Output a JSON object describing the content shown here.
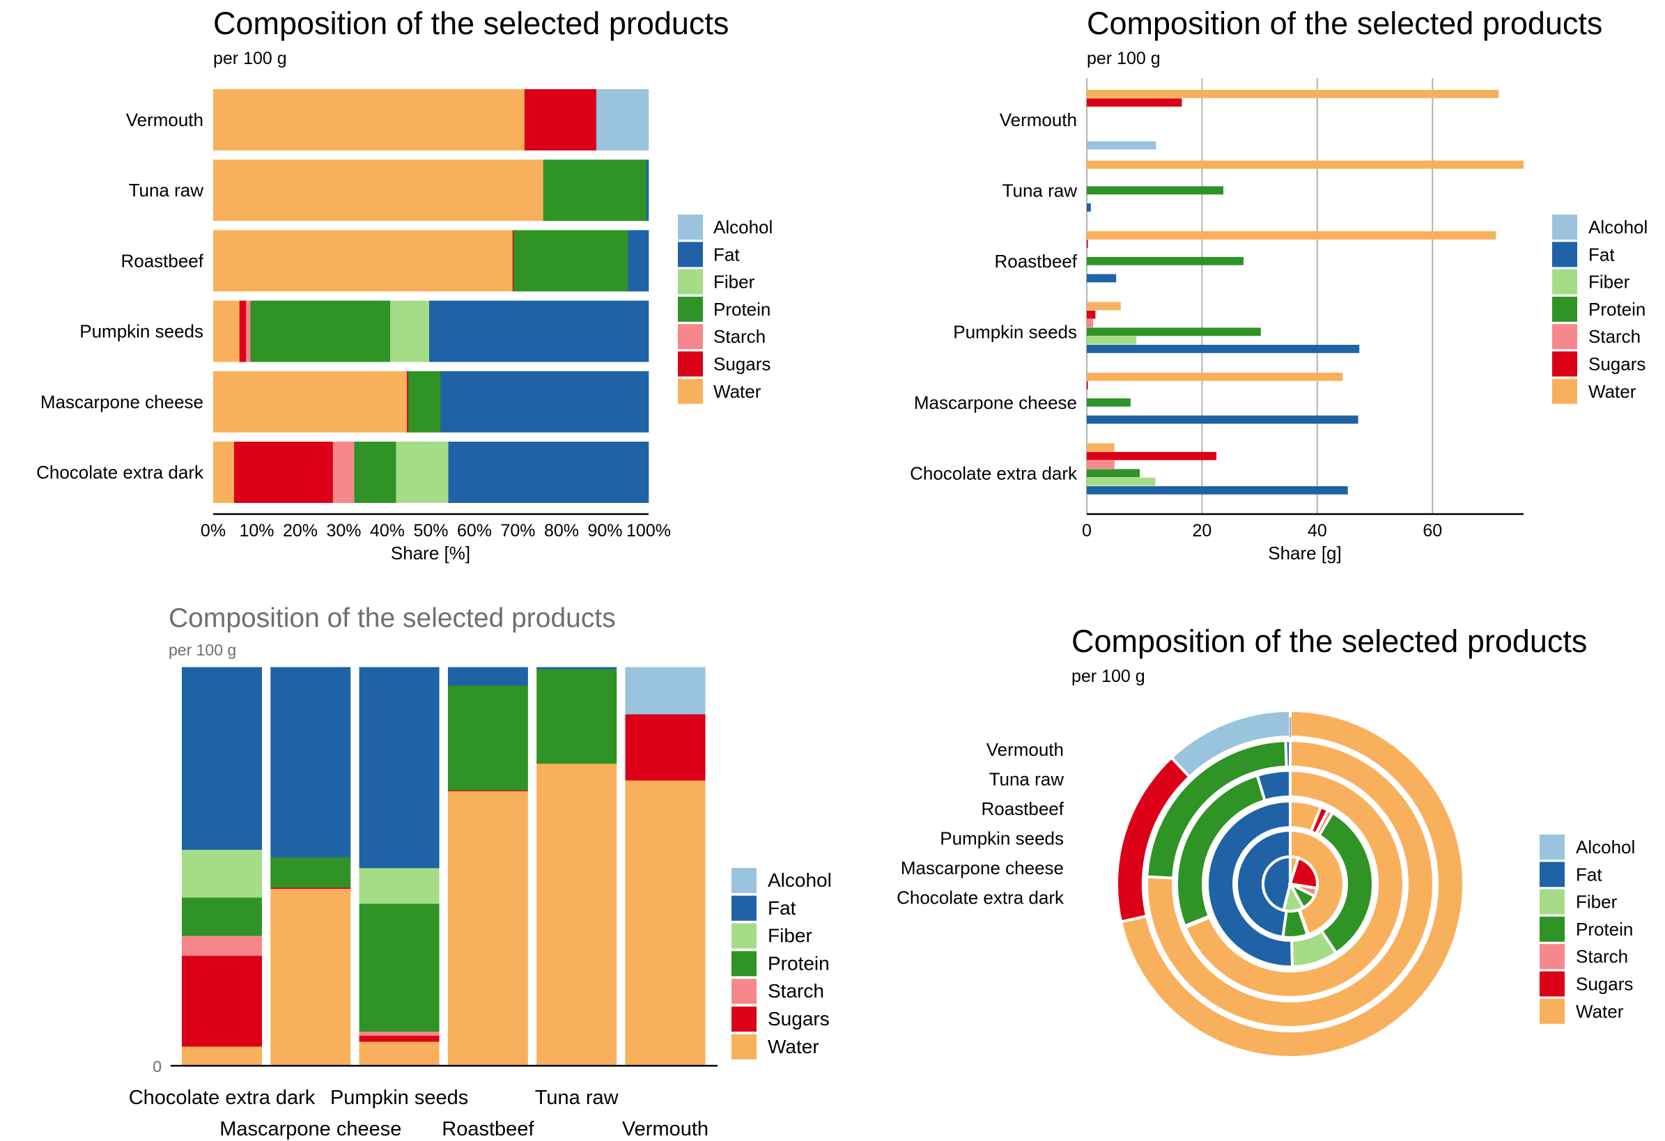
{
  "palette": {
    "Alcohol": "#9ac3dd",
    "Fat": "#1f63a6",
    "Fiber": "#a5dc87",
    "Protein": "#2f9325",
    "Starch": "#f6888d",
    "Sugars": "#db0018",
    "Water": "#f9b05c"
  },
  "chart_data": [
    {
      "type": "bar",
      "orientation": "horizontal",
      "stacked": "percent",
      "title": "Composition of the selected products",
      "subtitle": "per 100 g",
      "xlabel": "Share [%]",
      "ylabel": "",
      "xlim": [
        0,
        100
      ],
      "x_tick_labels": [
        "0%",
        "10%",
        "20%",
        "30%",
        "40%",
        "50%",
        "60%",
        "70%",
        "80%",
        "90%",
        "100%"
      ],
      "categories": [
        "Vermouth",
        "Tuna raw",
        "Roastbeef",
        "Pumpkin seeds",
        "Mascarpone cheese",
        "Chocolate extra dark"
      ],
      "legend": [
        "Alcohol",
        "Fat",
        "Fiber",
        "Protein",
        "Starch",
        "Sugars",
        "Water"
      ],
      "legend_position": "right",
      "series": [
        {
          "name": "Water",
          "values": [
            71.5,
            75.8,
            68.9,
            6.0,
            44.5,
            4.8
          ]
        },
        {
          "name": "Sugars",
          "values": [
            16.5,
            0.0,
            0.2,
            1.5,
            0.3,
            22.7
          ]
        },
        {
          "name": "Starch",
          "values": [
            0.0,
            0.0,
            0.0,
            1.0,
            0.0,
            4.9
          ]
        },
        {
          "name": "Protein",
          "values": [
            0.0,
            23.7,
            26.4,
            31.9,
            7.4,
            9.6
          ]
        },
        {
          "name": "Fiber",
          "values": [
            0.0,
            0.0,
            0.0,
            8.9,
            0.0,
            12.0
          ]
        },
        {
          "name": "Fat",
          "values": [
            0.0,
            0.5,
            4.7,
            50.1,
            47.8,
            46.0
          ]
        },
        {
          "name": "Alcohol",
          "values": [
            12.0,
            0.0,
            0.0,
            0.0,
            0.0,
            0.0
          ]
        }
      ]
    },
    {
      "type": "bar",
      "orientation": "horizontal",
      "stacked": "none",
      "title": "Composition of the selected products",
      "subtitle": "per 100 g",
      "xlabel": "Share [g]",
      "ylabel": "",
      "xlim": [
        0,
        75.8
      ],
      "x_ticks": [
        0,
        20,
        40,
        60
      ],
      "grid": "vertical",
      "categories": [
        "Vermouth",
        "Tuna raw",
        "Roastbeef",
        "Pumpkin seeds",
        "Mascarpone cheese",
        "Chocolate extra dark"
      ],
      "legend": [
        "Alcohol",
        "Fat",
        "Fiber",
        "Protein",
        "Starch",
        "Sugars",
        "Water"
      ],
      "legend_position": "right",
      "series": [
        {
          "name": "Water",
          "values": [
            71.5,
            75.8,
            71.0,
            5.9,
            44.4,
            4.8
          ]
        },
        {
          "name": "Sugars",
          "values": [
            16.5,
            0.0,
            0.2,
            1.5,
            0.2,
            22.5
          ]
        },
        {
          "name": "Starch",
          "values": [
            0.0,
            0.0,
            0.0,
            1.1,
            0.0,
            4.8
          ]
        },
        {
          "name": "Protein",
          "values": [
            0.0,
            23.7,
            27.2,
            30.2,
            7.6,
            9.2
          ]
        },
        {
          "name": "Fiber",
          "values": [
            0.0,
            0.0,
            0.0,
            8.6,
            0.0,
            11.9
          ]
        },
        {
          "name": "Fat",
          "values": [
            0.0,
            0.7,
            5.1,
            47.3,
            47.1,
            45.3
          ]
        },
        {
          "name": "Alcohol",
          "values": [
            12.0,
            0.0,
            0.0,
            0.0,
            0.0,
            0.0
          ]
        }
      ]
    },
    {
      "type": "bar",
      "orientation": "vertical",
      "stacked": "percent",
      "title": "Composition of the selected products",
      "subtitle": "per 100 g",
      "xlabel": "",
      "ylabel": "",
      "y_tick_labels": [
        "0"
      ],
      "categories": [
        "Chocolate extra dark",
        "Mascarpone cheese",
        "Pumpkin seeds",
        "Roastbeef",
        "Tuna raw",
        "Vermouth"
      ],
      "legend": [
        "Alcohol",
        "Fat",
        "Fiber",
        "Protein",
        "Starch",
        "Sugars",
        "Water"
      ],
      "legend_position": "right",
      "series": [
        {
          "name": "Water",
          "values": [
            4.8,
            44.4,
            6.0,
            68.9,
            75.8,
            71.6
          ]
        },
        {
          "name": "Sugars",
          "values": [
            22.8,
            0.3,
            1.5,
            0.2,
            0.0,
            16.6
          ]
        },
        {
          "name": "Starch",
          "values": [
            5.0,
            0.0,
            1.0,
            0.0,
            0.0,
            0.0
          ]
        },
        {
          "name": "Protein",
          "values": [
            9.6,
            7.6,
            31.9,
            26.3,
            23.7,
            0.0
          ]
        },
        {
          "name": "Fiber",
          "values": [
            12.0,
            0.0,
            8.9,
            0.0,
            0.0,
            0.0
          ]
        },
        {
          "name": "Fat",
          "values": [
            45.8,
            47.7,
            50.1,
            4.6,
            0.5,
            0.0
          ]
        },
        {
          "name": "Alcohol",
          "values": [
            0.0,
            0.0,
            0.0,
            0.0,
            0.0,
            11.8
          ]
        }
      ]
    },
    {
      "type": "pie",
      "variant": "concentric-rings",
      "title": "Composition of the selected products",
      "subtitle": "per 100 g",
      "rings_outer_to_inner": [
        "Vermouth",
        "Tuna raw",
        "Roastbeef",
        "Pumpkin seeds",
        "Mascarpone cheese",
        "Chocolate extra dark"
      ],
      "ring_labels": [
        "Vermouth",
        "Tuna raw",
        "Roastbeef",
        "Pumpkin seeds",
        "Mascarpone cheese",
        "Chocolate extra dark"
      ],
      "legend": [
        "Alcohol",
        "Fat",
        "Fiber",
        "Protein",
        "Starch",
        "Sugars",
        "Water"
      ],
      "legend_position": "right",
      "series": [
        {
          "name": "Water",
          "values": [
            71.5,
            75.8,
            68.9,
            6.0,
            44.5,
            4.8
          ]
        },
        {
          "name": "Sugars",
          "values": [
            16.5,
            0.0,
            0.2,
            1.5,
            0.3,
            22.7
          ]
        },
        {
          "name": "Starch",
          "values": [
            0.0,
            0.0,
            0.0,
            1.0,
            0.0,
            4.9
          ]
        },
        {
          "name": "Protein",
          "values": [
            0.0,
            23.7,
            26.4,
            31.9,
            7.4,
            9.6
          ]
        },
        {
          "name": "Fiber",
          "values": [
            0.0,
            0.0,
            0.0,
            8.9,
            0.0,
            12.0
          ]
        },
        {
          "name": "Fat",
          "values": [
            0.0,
            0.5,
            4.7,
            50.1,
            47.8,
            46.0
          ]
        },
        {
          "name": "Alcohol",
          "values": [
            12.0,
            0.0,
            0.0,
            0.0,
            0.0,
            0.0
          ]
        }
      ]
    }
  ]
}
